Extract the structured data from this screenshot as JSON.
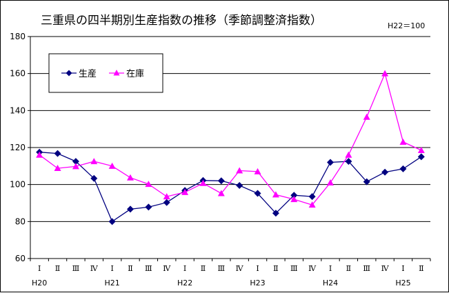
{
  "chart_data": {
    "type": "line",
    "title": "三重県の四半期別生産指数の推移（季節調整済指数）",
    "note": "H22＝100",
    "ylim": [
      60,
      180
    ],
    "yticks": [
      60,
      80,
      100,
      120,
      140,
      160,
      180
    ],
    "grid": true,
    "legend_position": "top-left",
    "quarter_labels": [
      "Ⅰ",
      "Ⅱ",
      "Ⅲ",
      "Ⅳ",
      "Ⅰ",
      "Ⅱ",
      "Ⅲ",
      "Ⅳ",
      "Ⅰ",
      "Ⅱ",
      "Ⅲ",
      "Ⅳ",
      "Ⅰ",
      "Ⅱ",
      "Ⅲ",
      "Ⅳ",
      "Ⅰ",
      "Ⅱ",
      "Ⅲ",
      "Ⅳ",
      "Ⅰ",
      "Ⅱ"
    ],
    "year_labels": [
      {
        "label": "H20",
        "index": 0
      },
      {
        "label": "H21",
        "index": 4
      },
      {
        "label": "H22",
        "index": 8
      },
      {
        "label": "H23",
        "index": 12
      },
      {
        "label": "H24",
        "index": 16
      },
      {
        "label": "H25",
        "index": 20
      }
    ],
    "series": [
      {
        "name": "生産",
        "color": "#000080",
        "marker": "diamond",
        "values": [
          117.5,
          116.8,
          112.5,
          103.3,
          80.0,
          86.7,
          87.8,
          90.3,
          96.8,
          102.2,
          102.0,
          99.5,
          95.2,
          84.5,
          94.2,
          93.5,
          112.0,
          112.5,
          101.5,
          106.7,
          108.5,
          115.0
        ]
      },
      {
        "name": "在庫",
        "color": "#ff00ff",
        "marker": "triangle",
        "values": [
          116.0,
          108.8,
          109.8,
          112.5,
          110.0,
          103.7,
          100.2,
          93.5,
          95.8,
          100.7,
          95.2,
          107.5,
          107.0,
          94.5,
          92.0,
          89.0,
          101.0,
          116.0,
          136.5,
          160.0,
          123.0,
          118.5
        ]
      }
    ]
  }
}
